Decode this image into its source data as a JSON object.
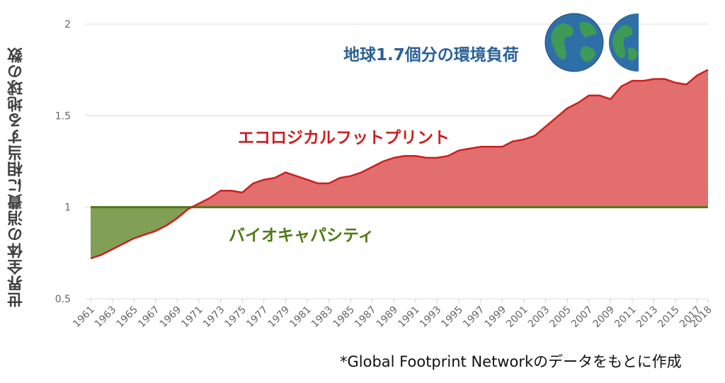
{
  "chart_data": {
    "type": "area",
    "ylabel": "世界全体の消費に相当する地球の数",
    "ylim": [
      0.5,
      2
    ],
    "yticks": [
      "0.5",
      "1",
      "1.5",
      "2"
    ],
    "x": [
      1961,
      1962,
      1963,
      1964,
      1965,
      1966,
      1967,
      1968,
      1969,
      1970,
      1971,
      1972,
      1973,
      1974,
      1975,
      1976,
      1977,
      1978,
      1979,
      1980,
      1981,
      1982,
      1983,
      1984,
      1985,
      1986,
      1987,
      1988,
      1989,
      1990,
      1991,
      1992,
      1993,
      1994,
      1995,
      1996,
      1997,
      1998,
      1999,
      2000,
      2001,
      2002,
      2003,
      2004,
      2005,
      2006,
      2007,
      2008,
      2009,
      2010,
      2011,
      2012,
      2013,
      2014,
      2015,
      2016,
      2017,
      2018
    ],
    "xticks": [
      "1961",
      "1963",
      "1965",
      "1967",
      "1969",
      "1971",
      "1973",
      "1975",
      "1977",
      "1979",
      "1981",
      "1983",
      "1985",
      "1987",
      "1989",
      "1991",
      "1993",
      "1995",
      "1997",
      "1999",
      "2001",
      "2003",
      "2005",
      "2007",
      "2009",
      "2011",
      "2013",
      "2015",
      "2017",
      "2018"
    ],
    "series": [
      {
        "name": "エコロジカルフットプリント",
        "color": "#cc1f1f",
        "fill": "#e06666",
        "values": [
          0.72,
          0.74,
          0.77,
          0.8,
          0.83,
          0.85,
          0.87,
          0.9,
          0.94,
          0.99,
          1.02,
          1.05,
          1.09,
          1.09,
          1.08,
          1.13,
          1.15,
          1.16,
          1.19,
          1.17,
          1.15,
          1.13,
          1.13,
          1.16,
          1.17,
          1.19,
          1.22,
          1.25,
          1.27,
          1.28,
          1.28,
          1.27,
          1.27,
          1.28,
          1.31,
          1.32,
          1.33,
          1.33,
          1.33,
          1.36,
          1.37,
          1.39,
          1.44,
          1.49,
          1.54,
          1.57,
          1.61,
          1.61,
          1.59,
          1.66,
          1.69,
          1.69,
          1.7,
          1.7,
          1.68,
          1.67,
          1.72,
          1.75
        ]
      },
      {
        "name": "バイオキャパシティ",
        "color": "#4f7a13",
        "fill": "#7a9a4c",
        "values": [
          1,
          1,
          1,
          1,
          1,
          1,
          1,
          1,
          1,
          1,
          1,
          1,
          1,
          1,
          1,
          1,
          1,
          1,
          1,
          1,
          1,
          1,
          1,
          1,
          1,
          1,
          1,
          1,
          1,
          1,
          1,
          1,
          1,
          1,
          1,
          1,
          1,
          1,
          1,
          1,
          1,
          1,
          1,
          1,
          1,
          1,
          1,
          1,
          1,
          1,
          1,
          1,
          1,
          1,
          1,
          1,
          1,
          1
        ]
      }
    ],
    "annotations": {
      "footprint_label": "エコロジカルフットプリント",
      "biocap_label": "バイオキャパシティ",
      "earths_label": "地球1.7個分の環境負荷"
    },
    "note": "*Global Footprint Networkのデータをもとに作成",
    "grid": "horizontal",
    "legend": "none"
  },
  "colors": {
    "footprint_line": "#cc1f1f",
    "footprint_fill": "#e06666",
    "biocap_line": "#4f7a13",
    "biocap_fill": "#7a9a4c",
    "earths_text": "#2a6196",
    "ocean": "#2f6fa8",
    "land": "#3d9a57"
  }
}
